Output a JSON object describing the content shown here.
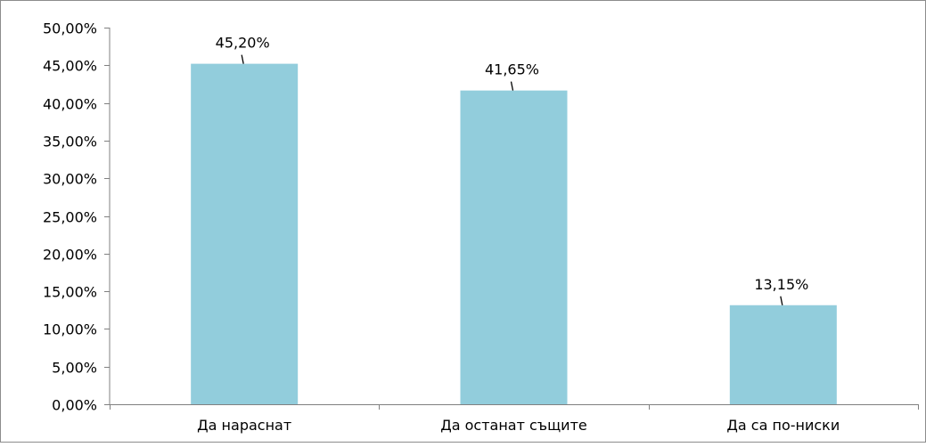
{
  "chart_data": {
    "type": "bar",
    "categories": [
      "Да нараснат",
      "Да останат същите",
      "Да са по-ниски"
    ],
    "values": [
      45.2,
      41.65,
      13.15
    ],
    "value_labels": [
      "45,20%",
      "41,65%",
      "13,15%"
    ],
    "ylim": [
      0,
      50
    ],
    "yticks": [
      0,
      5,
      10,
      15,
      20,
      25,
      30,
      35,
      40,
      45,
      50
    ],
    "ytick_labels": [
      "0,00%",
      "5,00%",
      "10,00%",
      "15,00%",
      "20,00%",
      "25,00%",
      "30,00%",
      "35,00%",
      "40,00%",
      "45,00%",
      "50,00%"
    ],
    "grid": false,
    "legend": "none",
    "bar_color": "#92CDDC",
    "axis_color": "#808080",
    "text_color": "#000000"
  }
}
